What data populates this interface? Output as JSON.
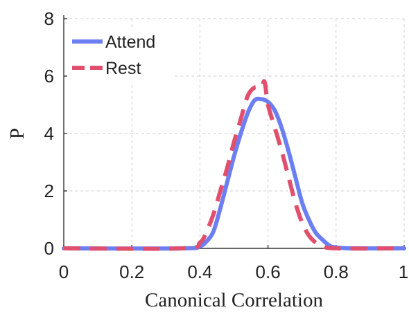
{
  "chart_data": {
    "type": "line",
    "title": "",
    "xlabel": "Canonical Correlation",
    "ylabel": "P",
    "xlim": [
      0,
      1
    ],
    "ylim": [
      0,
      8
    ],
    "xticks": [
      0,
      0.2,
      0.4,
      0.6,
      0.8,
      1
    ],
    "xtick_labels": [
      "0",
      "0.2",
      "0.4",
      "0.6",
      "0.8",
      "1"
    ],
    "yticks": [
      0,
      2,
      4,
      6,
      8
    ],
    "ytick_labels": [
      "0",
      "2",
      "4",
      "6",
      "8"
    ],
    "grid": true,
    "legend": "top-left",
    "series": [
      {
        "name": "Attend",
        "color": "#6b7ff2",
        "style": "solid",
        "x": [
          0,
          0.35,
          0.4,
          0.42,
          0.44,
          0.46,
          0.48,
          0.5,
          0.52,
          0.54,
          0.56,
          0.58,
          0.6,
          0.62,
          0.64,
          0.66,
          0.68,
          0.7,
          0.72,
          0.74,
          0.76,
          0.78,
          0.8,
          0.85,
          1
        ],
        "y": [
          0,
          0,
          0.08,
          0.25,
          0.6,
          1.4,
          2.3,
          3.2,
          4.0,
          4.7,
          5.15,
          5.2,
          5.1,
          4.8,
          4.2,
          3.4,
          2.5,
          1.6,
          1.0,
          0.55,
          0.3,
          0.1,
          0.03,
          0,
          0
        ]
      },
      {
        "name": "Rest",
        "color": "#e0506e",
        "style": "dashed",
        "x": [
          0,
          0.35,
          0.4,
          0.42,
          0.44,
          0.46,
          0.48,
          0.5,
          0.52,
          0.54,
          0.56,
          0.58,
          0.59,
          0.6,
          0.62,
          0.64,
          0.66,
          0.68,
          0.7,
          0.72,
          0.74,
          0.76,
          0.8,
          1
        ],
        "y": [
          0,
          0,
          0.2,
          0.6,
          1.2,
          2.0,
          2.8,
          3.7,
          4.5,
          5.3,
          5.6,
          5.6,
          5.8,
          5.0,
          4.2,
          3.4,
          2.5,
          1.6,
          0.9,
          0.45,
          0.2,
          0.08,
          0,
          0
        ]
      }
    ]
  }
}
